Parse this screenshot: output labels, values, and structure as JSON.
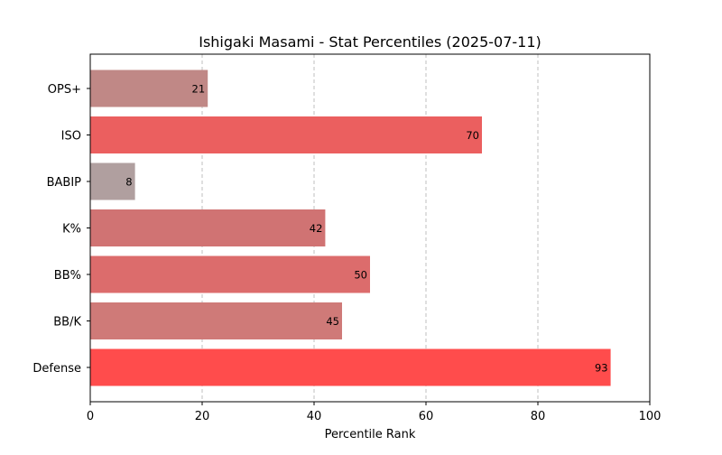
{
  "chart_data": {
    "type": "bar",
    "orientation": "horizontal",
    "title": "Ishigaki Masami - Stat Percentiles (2025-07-11)",
    "xlabel": "Percentile Rank",
    "ylabel": "",
    "xlim": [
      0,
      100
    ],
    "xticks": [
      0,
      20,
      40,
      60,
      80,
      100
    ],
    "grid": {
      "x": true,
      "y": false,
      "style": "dashed"
    },
    "categories": [
      "OPS+",
      "ISO",
      "BABIP",
      "K%",
      "BB%",
      "BB/K",
      "Defense"
    ],
    "values": [
      21,
      70,
      8,
      42,
      50,
      45,
      93
    ],
    "bar_colors": [
      "#c08886",
      "#eb5f5f",
      "#b09f9f",
      "#d07373",
      "#dc6c6c",
      "#cf7a78",
      "#ff4c4c"
    ],
    "data_labels": [
      "21",
      "70",
      "8",
      "42",
      "50",
      "45",
      "93"
    ]
  }
}
